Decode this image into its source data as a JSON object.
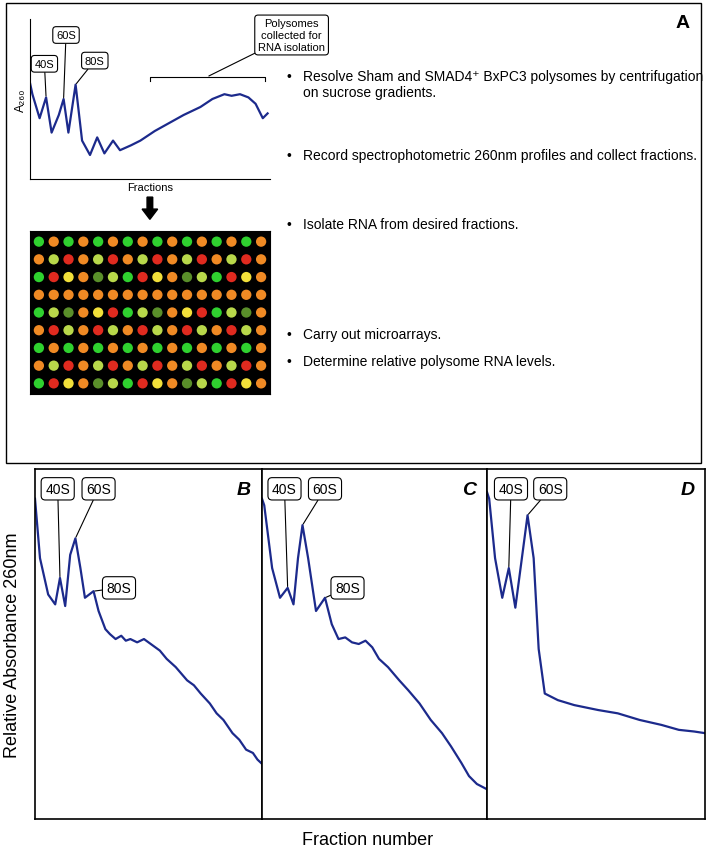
{
  "panel_a": {
    "panel_label": "A",
    "bullet_symbol": "•",
    "bullets": [
      "Resolve Sham and SMAD4⁺ BxPC3 polysomes by centrifugation on sucrose gradients.",
      "Record spectrophotometric 260nm profiles and collect fractions.",
      "Isolate RNA from desired fractions.",
      "Carry out microarrays.",
      "Determine relative polysome RNA levels."
    ]
  },
  "figure": {
    "y_label": "Relative Absorbance 260nm",
    "x_label": "Fraction number"
  },
  "chart_data": [
    {
      "type": "line",
      "x_label": "Fractions",
      "y_label": "A₂₆₀",
      "color": "#1c2a8c",
      "tick_labels": false,
      "xlim": [
        0,
        100
      ],
      "ylim": [
        0,
        100
      ],
      "x": [
        0,
        1,
        4,
        6.7,
        9,
        12,
        14,
        16,
        19,
        21.7,
        25,
        28,
        31,
        34.6,
        37.5,
        42,
        46,
        52,
        58,
        64,
        71,
        76,
        81,
        84,
        87.5,
        91,
        94,
        97,
        99
      ],
      "values": [
        60,
        53,
        38,
        51,
        29,
        40,
        50,
        29,
        59,
        24,
        15,
        26,
        16,
        24,
        18,
        21,
        24,
        30,
        35,
        40,
        45,
        50,
        53,
        52,
        53,
        51,
        47,
        38,
        41
      ],
      "annotations": [
        {
          "text": "40S",
          "x": 6.7,
          "y": 51
        },
        {
          "text": "60S",
          "x": 14,
          "y": 50
        },
        {
          "text": "80S",
          "x": 19,
          "y": 59
        }
      ],
      "bracket": {
        "text": "Polysomes collected for RNA isolation",
        "span": [
          50,
          98
        ],
        "y": 64
      }
    },
    {
      "type": "line",
      "panel_label": "B",
      "color": "#1c2a8c",
      "tick_labels": false,
      "xlim": [
        0,
        100
      ],
      "ylim": [
        0,
        106
      ],
      "x": [
        0,
        2.2,
        5.8,
        8.9,
        11,
        13.3,
        15.5,
        17.8,
        20,
        22,
        25.8,
        28,
        31,
        33,
        35.5,
        38,
        40,
        42,
        45,
        48,
        51,
        55,
        58,
        62,
        67,
        70,
        73,
        77,
        80,
        83,
        87,
        90,
        93,
        96,
        98,
        100
      ],
      "values": [
        97,
        79,
        68,
        65,
        73,
        64.5,
        80,
        85,
        76,
        67,
        69,
        63,
        57.5,
        56,
        54.5,
        55.5,
        54,
        54.5,
        53.5,
        54.5,
        53,
        51,
        48.5,
        46,
        42,
        40.5,
        38,
        35,
        32,
        30,
        26,
        24,
        21,
        20,
        18,
        16.7
      ],
      "annotations": [
        {
          "text": "40S",
          "x": 11,
          "y": 73
        },
        {
          "text": "60S",
          "x": 17.8,
          "y": 85
        },
        {
          "text": "80S",
          "x": 25.8,
          "y": 69
        }
      ]
    },
    {
      "type": "line",
      "panel_label": "C",
      "color": "#1c2a8c",
      "tick_labels": false,
      "xlim": [
        0,
        100
      ],
      "ylim": [
        0,
        106
      ],
      "x": [
        0,
        1,
        4.5,
        8,
        11.4,
        14,
        16,
        18,
        20.5,
        24,
        28,
        31,
        34,
        37,
        40,
        43,
        46,
        49,
        52,
        56,
        61,
        65,
        70,
        75,
        80,
        84,
        88.6,
        92,
        95.5,
        100
      ],
      "values": [
        97,
        95,
        76,
        67,
        70,
        65,
        79,
        89,
        79,
        63,
        67,
        59,
        54.5,
        55,
        53.5,
        53,
        54,
        52,
        48.5,
        46,
        42,
        39,
        35,
        30,
        26,
        22,
        17,
        13,
        10.6,
        9
      ],
      "annotations": [
        {
          "text": "40S",
          "x": 11.4,
          "y": 70
        },
        {
          "text": "60S",
          "x": 18,
          "y": 89
        },
        {
          "text": "80S",
          "x": 28,
          "y": 67
        }
      ]
    },
    {
      "type": "line",
      "panel_label": "D",
      "color": "#1c2a8c",
      "tick_labels": false,
      "xlim": [
        0,
        100
      ],
      "ylim": [
        0,
        106
      ],
      "x": [
        0,
        1,
        3.7,
        7,
        10,
        13,
        16,
        18.6,
        21.4,
        23.7,
        26.5,
        32.5,
        40,
        51,
        60,
        70,
        80,
        88,
        95,
        100
      ],
      "values": [
        99,
        97,
        79,
        67,
        76,
        64,
        79,
        92,
        79,
        51.5,
        38,
        36,
        34.5,
        33,
        32,
        30,
        28.5,
        27,
        26.5,
        26
      ],
      "annotations": [
        {
          "text": "40S",
          "x": 10,
          "y": 76
        },
        {
          "text": "60S",
          "x": 18.6,
          "y": 92
        }
      ]
    }
  ]
}
